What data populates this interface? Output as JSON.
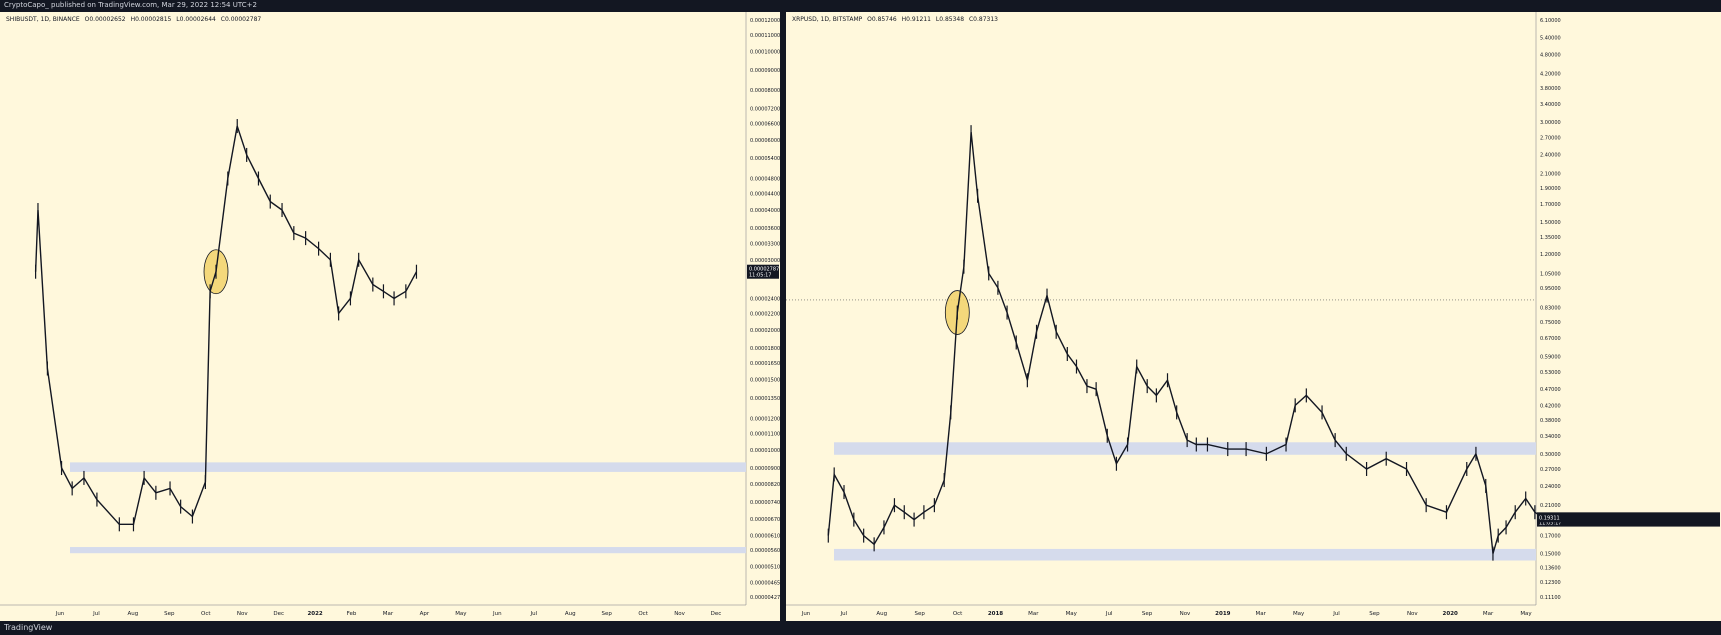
{
  "header": {
    "text": "CryptoCapo_ published on TradingView.com, Mar 29, 2022 12:54 UTC+2"
  },
  "footer": {
    "logo": "TradingView"
  },
  "colors": {
    "panel_bg": "#fff8dc",
    "zone": "#d5dbec",
    "circle_fill": "#f2d26a",
    "candle": "#131722",
    "price_tag": "#131722"
  },
  "chart_data": [
    {
      "type": "candlestick",
      "legend": {
        "symbol": "SHIBUSDT, 1D, BINANCE",
        "open": "O0.00002652",
        "high": "H0.00002815",
        "low": "L0.00002644",
        "close": "C0.00002787"
      },
      "x_ticks": [
        "Jun",
        "Jul",
        "Aug",
        "Sep",
        "Oct",
        "Nov",
        "Dec",
        "2022",
        "Feb",
        "Mar",
        "Apr",
        "May",
        "Jun",
        "Jul",
        "Aug",
        "Sep",
        "Oct",
        "Nov",
        "Dec"
      ],
      "y_ticks": [
        "0.00012000",
        "0.00011000",
        "0.00010000",
        "0.00009000",
        "0.00008000",
        "0.00007200",
        "0.00006600",
        "0.00006000",
        "0.00005400",
        "0.00004800",
        "0.00004400",
        "0.00004000",
        "0.00003600",
        "0.00003300",
        "0.00003000",
        "0.00002400",
        "0.00002200",
        "0.00002000",
        "0.00001800",
        "0.00001650",
        "0.00001500",
        "0.00001350",
        "0.00001200",
        "0.00001100",
        "0.00001000",
        "0.00000900",
        "0.00000820",
        "0.00000740",
        "0.00000670",
        "0.00000610",
        "0.00000560",
        "0.00000510",
        "0.00000465",
        "0.00000427"
      ],
      "price_label": "0.00002787",
      "price_time": "11:05:17",
      "series": [
        {
          "x": [
            "2021-05-10",
            "2021-05-12",
            "2021-05-20",
            "2021-06-01",
            "2021-06-10",
            "2021-06-20",
            "2021-07-01",
            "2021-07-20",
            "2021-08-01",
            "2021-08-10",
            "2021-08-20",
            "2021-09-01",
            "2021-09-10",
            "2021-09-20",
            "2021-10-01",
            "2021-10-05",
            "2021-10-10",
            "2021-10-20",
            "2021-10-28",
            "2021-11-05",
            "2021-11-15",
            "2021-11-25",
            "2021-12-05",
            "2021-12-15",
            "2021-12-25",
            "2022-01-05",
            "2022-01-15",
            "2022-01-22",
            "2022-02-01",
            "2022-02-08",
            "2022-02-20",
            "2022-03-01",
            "2022-03-10",
            "2022-03-20",
            "2022-03-29"
          ],
          "close": [
            2.8e-05,
            4e-05,
            1.6e-05,
            9e-06,
            8e-06,
            8.5e-06,
            7.5e-06,
            6.5e-06,
            6.5e-06,
            8.5e-06,
            7.8e-06,
            8e-06,
            7.2e-06,
            6.8e-06,
            8.3e-06,
            2.5e-05,
            2.8e-05,
            4.8e-05,
            6.5e-05,
            5.5e-05,
            4.8e-05,
            4.2e-05,
            4e-05,
            3.5e-05,
            3.4e-05,
            3.2e-05,
            3e-05,
            2.2e-05,
            2.4e-05,
            3e-05,
            2.6e-05,
            2.5e-05,
            2.4e-05,
            2.5e-05,
            2.8e-05
          ]
        }
      ],
      "zones": [
        {
          "low": 8.8e-06,
          "high": 9.3e-06
        },
        {
          "low": 5.5e-06,
          "high": 5.7e-06
        }
      ],
      "highlight": {
        "date": "2021-10-10",
        "price": 2.8e-05
      },
      "y_scale": "log"
    },
    {
      "type": "candlestick",
      "legend": {
        "symbol": "XRPUSD, 1D, BITSTAMP",
        "open": "O0.85746",
        "high": "H0.91211",
        "low": "L0.85348",
        "close": "C0.87313"
      },
      "x_ticks": [
        "Jun",
        "Jul",
        "Aug",
        "Sep",
        "Oct",
        "2018",
        "Mar",
        "May",
        "Jul",
        "Sep",
        "Nov",
        "2019",
        "Mar",
        "May",
        "Jul",
        "Sep",
        "Nov",
        "2020",
        "Mar",
        "May"
      ],
      "y_ticks": [
        "6.10000",
        "5.40000",
        "4.80000",
        "4.20000",
        "3.80000",
        "3.40000",
        "3.00000",
        "2.70000",
        "2.40000",
        "2.10000",
        "1.90000",
        "1.70000",
        "1.50000",
        "1.35000",
        "1.20000",
        "1.05000",
        "0.95000",
        "0.83000",
        "0.75000",
        "0.67000",
        "0.59000",
        "0.53000",
        "0.47000",
        "0.42000",
        "0.38000",
        "0.34000",
        "0.30000",
        "0.27000",
        "0.24000",
        "0.21000",
        "0.19000",
        "0.17000",
        "0.15000",
        "0.13600",
        "0.12300",
        "0.11100"
      ],
      "price_label": "0.87313",
      "price_time": "11:05:17",
      "price_label2": "0.19311",
      "series": [
        {
          "x": [
            "2017-06-01",
            "2017-06-10",
            "2017-06-25",
            "2017-07-10",
            "2017-07-25",
            "2017-08-10",
            "2017-08-25",
            "2017-09-10",
            "2017-09-25",
            "2017-10-10",
            "2017-10-25",
            "2017-11-10",
            "2017-11-25",
            "2017-12-05",
            "2017-12-15",
            "2017-12-25",
            "2018-01-05",
            "2018-01-15",
            "2018-02-01",
            "2018-02-15",
            "2018-03-01",
            "2018-03-15",
            "2018-04-01",
            "2018-04-15",
            "2018-05-01",
            "2018-05-15",
            "2018-06-01",
            "2018-06-15",
            "2018-07-01",
            "2018-07-15",
            "2018-08-01",
            "2018-08-15",
            "2018-09-01",
            "2018-09-15",
            "2018-10-01",
            "2018-10-15",
            "2018-11-01",
            "2018-11-15",
            "2018-12-01",
            "2018-12-15",
            "2019-01-01",
            "2019-02-01",
            "2019-03-01",
            "2019-04-01",
            "2019-05-01",
            "2019-05-15",
            "2019-06-01",
            "2019-06-25",
            "2019-07-15",
            "2019-08-01",
            "2019-09-01",
            "2019-10-01",
            "2019-11-01",
            "2019-12-01",
            "2020-01-01",
            "2020-02-01",
            "2020-02-15",
            "2020-03-01",
            "2020-03-12",
            "2020-03-20",
            "2020-04-01",
            "2020-04-15",
            "2020-05-01",
            "2020-05-15",
            "2020-06-01"
          ],
          "close": [
            0.17,
            0.26,
            0.23,
            0.19,
            0.17,
            0.16,
            0.18,
            0.21,
            0.2,
            0.19,
            0.2,
            0.21,
            0.25,
            0.4,
            0.8,
            1.1,
            2.8,
            1.8,
            1.05,
            0.95,
            0.8,
            0.65,
            0.5,
            0.7,
            0.9,
            0.7,
            0.6,
            0.55,
            0.48,
            0.47,
            0.34,
            0.28,
            0.32,
            0.55,
            0.48,
            0.45,
            0.5,
            0.4,
            0.33,
            0.32,
            0.32,
            0.31,
            0.31,
            0.3,
            0.32,
            0.42,
            0.45,
            0.4,
            0.33,
            0.3,
            0.27,
            0.29,
            0.27,
            0.21,
            0.2,
            0.27,
            0.3,
            0.24,
            0.15,
            0.17,
            0.18,
            0.2,
            0.22,
            0.2,
            0.19
          ]
        }
      ],
      "zones": [
        {
          "low": 0.298,
          "high": 0.325
        },
        {
          "low": 0.143,
          "high": 0.155
        }
      ],
      "highlight": {
        "date": "2017-12-15",
        "price": 0.8
      },
      "dotted_level": 0.873,
      "y_scale": "log"
    }
  ]
}
